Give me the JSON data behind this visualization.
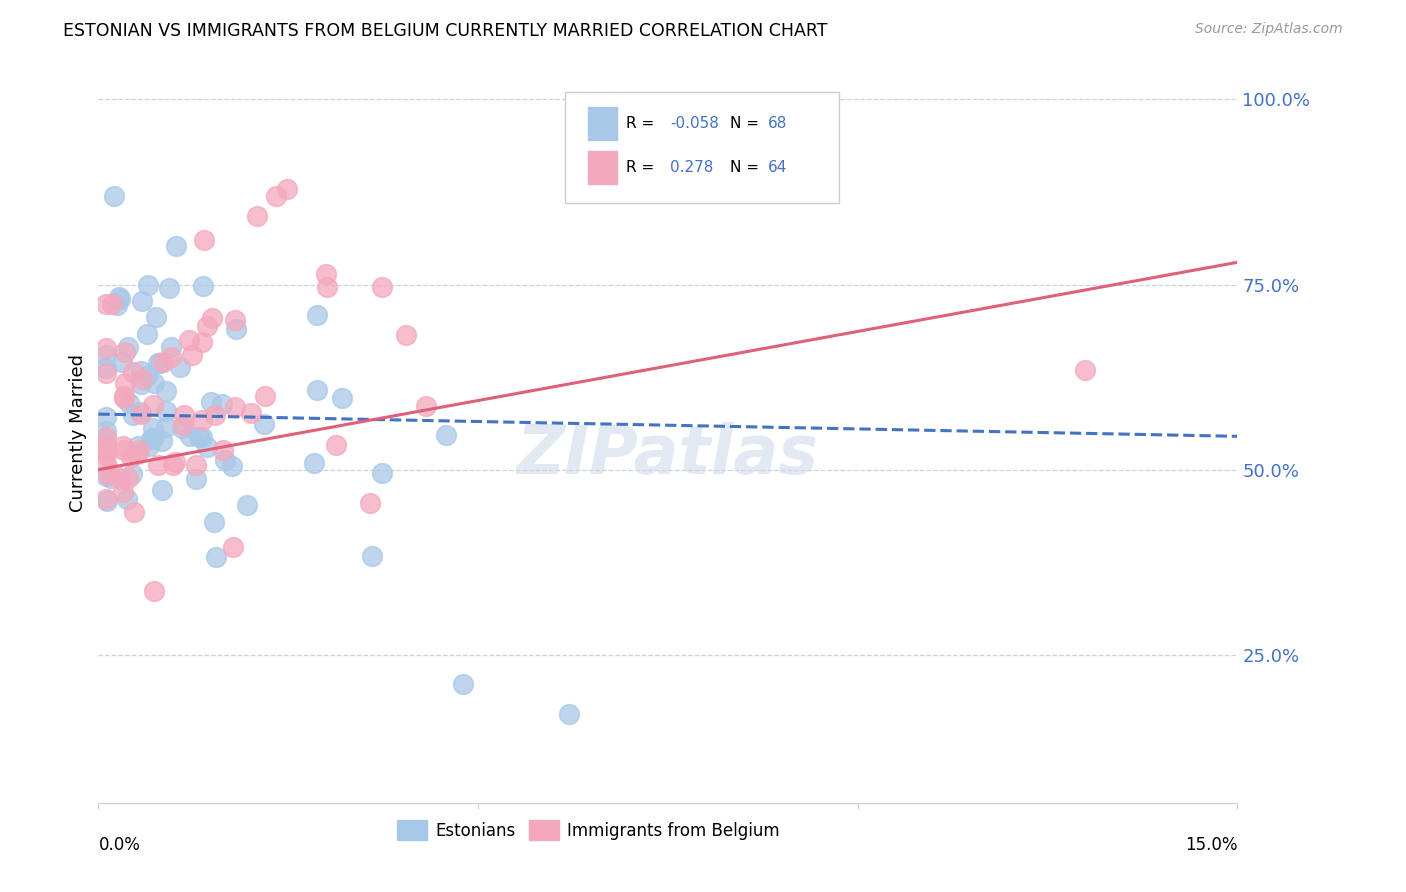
{
  "title": "ESTONIAN VS IMMIGRANTS FROM BELGIUM CURRENTLY MARRIED CORRELATION CHART",
  "source": "Source: ZipAtlas.com",
  "ylabel": "Currently Married",
  "ytick_labels": [
    "25.0%",
    "50.0%",
    "75.0%",
    "100.0%"
  ],
  "ytick_positions": [
    0.25,
    0.5,
    0.75,
    1.0
  ],
  "xmin": 0.0,
  "xmax": 0.15,
  "ymin": 0.05,
  "ymax": 1.05,
  "estonians_color": "#a8c8e8",
  "immigrants_color": "#f4a8bc",
  "trend_estonian_color": "#4472c4",
  "trend_immigrant_color": "#e0607a",
  "trend_est_x0": 0.0,
  "trend_est_y0": 0.575,
  "trend_est_x1": 0.15,
  "trend_est_y1": 0.545,
  "trend_imm_x0": 0.0,
  "trend_imm_y0": 0.5,
  "trend_imm_x1": 0.15,
  "trend_imm_y1": 0.78,
  "watermark": "ZIPatlas",
  "legend_r1": "-0.058",
  "legend_n1": "68",
  "legend_r2": "0.278",
  "legend_n2": "64",
  "bottom_legend_labels": [
    "Estonians",
    "Immigrants from Belgium"
  ],
  "bottom_legend_colors": [
    "#a8c8e8",
    "#f4a8bc"
  ]
}
